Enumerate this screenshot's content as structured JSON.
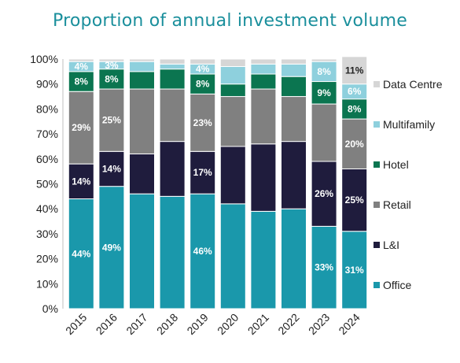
{
  "colors": {
    "Office": "#1a98ab",
    "L&I": "#1f1c3d",
    "Retail": "#808080",
    "Hotel": "#0b7550",
    "Multifamily": "#8ed0dd",
    "Data Centre": "#d6d6d6",
    "title": "#1a8f9c"
  },
  "chart_data": {
    "type": "bar",
    "stacked": true,
    "title": "Proportion of annual investment volume",
    "xlabel": "",
    "ylabel": "",
    "ylim": [
      0,
      100
    ],
    "yticks": [
      "0%",
      "10%",
      "20%",
      "30%",
      "40%",
      "50%",
      "60%",
      "70%",
      "80%",
      "90%",
      "100%"
    ],
    "categories": [
      "2015",
      "2016",
      "2017",
      "2018",
      "2019",
      "2020",
      "2021",
      "2022",
      "2023",
      "2024"
    ],
    "legend_position": "right",
    "grid": false,
    "series": [
      {
        "name": "Office",
        "values": [
          44,
          49,
          46,
          45,
          46,
          42,
          39,
          40,
          33,
          31
        ],
        "labels": [
          "44%",
          "49%",
          "",
          "",
          "46%",
          "",
          "",
          "",
          "33%",
          "31%"
        ]
      },
      {
        "name": "L&I",
        "values": [
          14,
          14,
          16,
          22,
          17,
          23,
          27,
          27,
          26,
          25
        ],
        "labels": [
          "14%",
          "14%",
          "",
          "",
          "17%",
          "",
          "",
          "",
          "26%",
          "25%"
        ]
      },
      {
        "name": "Retail",
        "values": [
          29,
          25,
          26,
          21,
          23,
          20,
          22,
          18,
          23,
          20
        ],
        "labels": [
          "29%",
          "25%",
          "",
          "",
          "23%",
          "",
          "",
          "",
          "",
          "20%"
        ]
      },
      {
        "name": "Hotel",
        "values": [
          8,
          8,
          7,
          8,
          8,
          5,
          6,
          8,
          9,
          8
        ],
        "labels": [
          "8%",
          "8%",
          "",
          "",
          "8%",
          "",
          "",
          "",
          "9%",
          "8%"
        ]
      },
      {
        "name": "Multifamily",
        "values": [
          4,
          3,
          4,
          2,
          4,
          7,
          4,
          5,
          8,
          6
        ],
        "labels": [
          "4%",
          "3%",
          "",
          "",
          "4%",
          "",
          "",
          "",
          "8%",
          "6%"
        ]
      },
      {
        "name": "Data Centre",
        "values": [
          1,
          1,
          1,
          2,
          2,
          3,
          2,
          2,
          1,
          11
        ],
        "labels": [
          "",
          "",
          "",
          "",
          "",
          "",
          "",
          "",
          "",
          "11%"
        ]
      }
    ]
  }
}
